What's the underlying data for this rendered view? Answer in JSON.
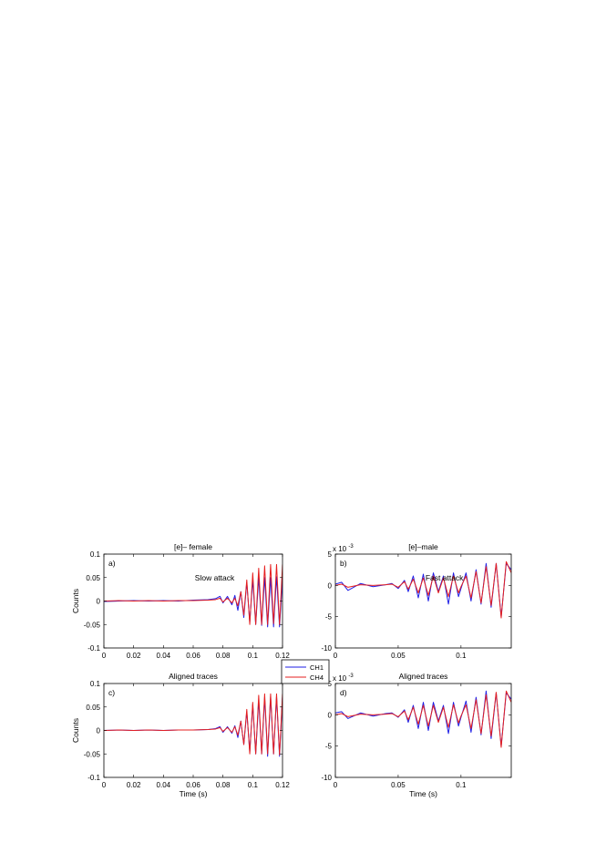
{
  "colors": {
    "ch1": "#1f1fe6",
    "ch4": "#e61f1f"
  },
  "legend": {
    "placement": "center",
    "items": [
      "CH1",
      "CH4"
    ]
  },
  "chart_data": [
    {
      "id": "a",
      "type": "line",
      "title": "[e]– female",
      "panel_label": "a)",
      "annotation": "Slow attack",
      "xlabel": "",
      "ylabel": "Counts",
      "xlim": [
        0,
        0.12
      ],
      "ylim": [
        -0.1,
        0.1
      ],
      "xticks": [
        0,
        0.02,
        0.04,
        0.06,
        0.08,
        0.1,
        0.12
      ],
      "xtick_labels": [
        "0",
        "0.02",
        "0.04",
        "0.06",
        "0.08",
        "0.1",
        "0.12"
      ],
      "yticks": [
        -0.1,
        -0.05,
        0,
        0.05,
        0.1
      ],
      "ytick_labels": [
        "-0.1",
        "-0.05",
        "0",
        "0.05",
        "0.1"
      ],
      "exponent_label": "",
      "series": [
        {
          "name": "CH1",
          "color": "#1f1fe6",
          "x": [
            0,
            0.01,
            0.02,
            0.03,
            0.04,
            0.05,
            0.06,
            0.07,
            0.075,
            0.078,
            0.08,
            0.083,
            0.086,
            0.088,
            0.09,
            0.092,
            0.094,
            0.096,
            0.098,
            0.1,
            0.102,
            0.104,
            0.106,
            0.108,
            0.11,
            0.112,
            0.114,
            0.116,
            0.118,
            0.12
          ],
          "y": [
            -0.001,
            0.0,
            0.001,
            0.0,
            0.001,
            0.0,
            0.002,
            0.003,
            0.005,
            0.01,
            -0.004,
            0.01,
            -0.008,
            0.012,
            -0.02,
            0.02,
            -0.035,
            0.04,
            -0.045,
            0.045,
            -0.05,
            0.05,
            -0.052,
            0.05,
            -0.055,
            0.05,
            -0.055,
            0.052,
            -0.055,
            0.05
          ]
        },
        {
          "name": "CH4",
          "color": "#e61f1f",
          "x": [
            0,
            0.01,
            0.02,
            0.03,
            0.04,
            0.05,
            0.06,
            0.07,
            0.075,
            0.078,
            0.08,
            0.083,
            0.086,
            0.088,
            0.09,
            0.092,
            0.094,
            0.096,
            0.098,
            0.1,
            0.102,
            0.104,
            0.106,
            0.108,
            0.11,
            0.112,
            0.114,
            0.116,
            0.118,
            0.12
          ],
          "y": [
            0.0,
            0.001,
            0.0,
            0.001,
            0.0,
            0.001,
            0.001,
            0.002,
            0.003,
            0.006,
            -0.002,
            0.006,
            -0.004,
            0.006,
            -0.01,
            0.02,
            -0.03,
            0.045,
            -0.05,
            0.06,
            -0.05,
            0.07,
            -0.05,
            0.075,
            -0.05,
            0.078,
            -0.048,
            0.078,
            -0.05,
            0.078
          ]
        }
      ]
    },
    {
      "id": "b",
      "type": "line",
      "title": "[e]–male",
      "panel_label": "b)",
      "annotation": "Fast attack",
      "xlabel": "",
      "ylabel": "",
      "xlim": [
        0,
        0.14
      ],
      "ylim": [
        -10,
        5
      ],
      "xticks": [
        0,
        0.05,
        0.1
      ],
      "xtick_labels": [
        "0",
        "0.05",
        "0.1"
      ],
      "yticks": [
        -10,
        -5,
        0,
        5
      ],
      "ytick_labels": [
        "-10",
        "-5",
        "0",
        "5"
      ],
      "exponent_label": "x 10",
      "exponent_power": "-3",
      "series": [
        {
          "name": "CH1",
          "color": "#1f1fe6",
          "x": [
            0,
            0.005,
            0.01,
            0.02,
            0.03,
            0.04,
            0.045,
            0.05,
            0.055,
            0.058,
            0.062,
            0.066,
            0.07,
            0.074,
            0.078,
            0.082,
            0.086,
            0.09,
            0.094,
            0.098,
            0.1,
            0.104,
            0.108,
            0.112,
            0.116,
            0.12,
            0.124,
            0.128,
            0.132,
            0.136,
            0.14
          ],
          "y": [
            0.2,
            0.5,
            -0.8,
            0.3,
            -0.2,
            0.1,
            0.3,
            -0.5,
            0.8,
            -1.0,
            1.5,
            -2.0,
            1.8,
            -2.5,
            2.0,
            -1.0,
            1.5,
            -3.0,
            2.0,
            -1.8,
            -0.5,
            2.0,
            -2.5,
            2.5,
            -3.0,
            3.5,
            -3.5,
            3.5,
            -5.0,
            3.5,
            2.5
          ]
        },
        {
          "name": "CH4",
          "color": "#e61f1f",
          "x": [
            0,
            0.005,
            0.01,
            0.02,
            0.03,
            0.04,
            0.045,
            0.05,
            0.055,
            0.058,
            0.062,
            0.066,
            0.07,
            0.074,
            0.078,
            0.082,
            0.086,
            0.09,
            0.094,
            0.098,
            0.1,
            0.104,
            0.108,
            0.112,
            0.116,
            0.12,
            0.124,
            0.128,
            0.132,
            0.136,
            0.14
          ],
          "y": [
            0.0,
            0.2,
            -0.3,
            0.1,
            0.0,
            0.1,
            0.2,
            -0.3,
            0.6,
            -0.6,
            1.0,
            -1.2,
            1.2,
            -1.6,
            1.5,
            -1.2,
            1.2,
            -1.8,
            1.5,
            -1.2,
            -0.2,
            1.5,
            -2.0,
            2.2,
            -2.8,
            3.0,
            -3.2,
            3.5,
            -5.2,
            3.8,
            2.0
          ]
        }
      ]
    },
    {
      "id": "c",
      "type": "line",
      "title": "Aligned traces",
      "panel_label": "c)",
      "annotation": "",
      "xlabel": "Time (s)",
      "ylabel": "Counts",
      "xlim": [
        0,
        0.12
      ],
      "ylim": [
        -0.1,
        0.1
      ],
      "xticks": [
        0,
        0.02,
        0.04,
        0.06,
        0.08,
        0.1,
        0.12
      ],
      "xtick_labels": [
        "0",
        "0.02",
        "0.04",
        "0.06",
        "0.08",
        "0.1",
        "0.12"
      ],
      "yticks": [
        -0.1,
        -0.05,
        0,
        0.05,
        0.1
      ],
      "ytick_labels": [
        "-0.1",
        "-0.05",
        "0",
        "0.05",
        "0.1"
      ],
      "exponent_label": "",
      "series": [
        {
          "name": "CH1",
          "color": "#1f1fe6",
          "x": [
            0,
            0.01,
            0.02,
            0.03,
            0.04,
            0.05,
            0.06,
            0.07,
            0.075,
            0.078,
            0.08,
            0.083,
            0.086,
            0.088,
            0.09,
            0.092,
            0.094,
            0.096,
            0.098,
            0.1,
            0.102,
            0.104,
            0.106,
            0.108,
            0.11,
            0.112,
            0.114,
            0.116,
            0.118,
            0.12
          ],
          "y": [
            0.0,
            0.001,
            0.0,
            0.001,
            0.0,
            0.001,
            0.001,
            0.002,
            0.004,
            0.008,
            -0.004,
            0.008,
            -0.006,
            0.01,
            -0.015,
            0.02,
            -0.03,
            0.04,
            -0.045,
            0.055,
            -0.05,
            0.065,
            -0.05,
            0.07,
            -0.055,
            0.072,
            -0.05,
            0.072,
            -0.055,
            0.072
          ]
        },
        {
          "name": "CH4",
          "color": "#e61f1f",
          "x": [
            0,
            0.01,
            0.02,
            0.03,
            0.04,
            0.05,
            0.06,
            0.07,
            0.075,
            0.078,
            0.08,
            0.083,
            0.086,
            0.088,
            0.09,
            0.092,
            0.094,
            0.096,
            0.098,
            0.1,
            0.102,
            0.104,
            0.106,
            0.108,
            0.11,
            0.112,
            0.114,
            0.116,
            0.118,
            0.12
          ],
          "y": [
            0.0,
            0.001,
            0.0,
            0.001,
            0.0,
            0.001,
            0.001,
            0.002,
            0.003,
            0.006,
            -0.002,
            0.006,
            -0.004,
            0.008,
            -0.01,
            0.02,
            -0.03,
            0.045,
            -0.05,
            0.06,
            -0.05,
            0.075,
            -0.05,
            0.078,
            -0.05,
            0.078,
            -0.05,
            0.078,
            -0.052,
            0.078
          ]
        }
      ]
    },
    {
      "id": "d",
      "type": "line",
      "title": "Aligned traces",
      "panel_label": "d)",
      "annotation": "",
      "xlabel": "Time (s)",
      "ylabel": "",
      "xlim": [
        0,
        0.14
      ],
      "ylim": [
        -10,
        5
      ],
      "xticks": [
        0,
        0.05,
        0.1
      ],
      "xtick_labels": [
        "0",
        "0.05",
        "0.1"
      ],
      "yticks": [
        -10,
        -5,
        0,
        5
      ],
      "ytick_labels": [
        "-10",
        "-5",
        "0",
        "5"
      ],
      "exponent_label": "x 10",
      "exponent_power": "-3",
      "series": [
        {
          "name": "CH1",
          "color": "#1f1fe6",
          "x": [
            0,
            0.005,
            0.01,
            0.02,
            0.03,
            0.04,
            0.045,
            0.05,
            0.055,
            0.058,
            0.062,
            0.066,
            0.07,
            0.074,
            0.078,
            0.082,
            0.086,
            0.09,
            0.094,
            0.098,
            0.1,
            0.104,
            0.108,
            0.112,
            0.116,
            0.12,
            0.124,
            0.128,
            0.132,
            0.136,
            0.14
          ],
          "y": [
            0.3,
            0.5,
            -0.6,
            0.3,
            -0.2,
            0.2,
            0.3,
            -0.4,
            0.8,
            -1.2,
            1.5,
            -2.2,
            2.0,
            -2.5,
            2.0,
            -1.0,
            1.5,
            -3.0,
            2.0,
            -1.8,
            -0.4,
            2.2,
            -2.8,
            2.8,
            -3.2,
            3.8,
            -3.8,
            3.5,
            -5.0,
            3.5,
            2.5
          ]
        },
        {
          "name": "CH4",
          "color": "#e61f1f",
          "x": [
            0,
            0.005,
            0.01,
            0.02,
            0.03,
            0.04,
            0.045,
            0.05,
            0.055,
            0.058,
            0.062,
            0.066,
            0.07,
            0.074,
            0.078,
            0.082,
            0.086,
            0.09,
            0.094,
            0.098,
            0.1,
            0.104,
            0.108,
            0.112,
            0.116,
            0.12,
            0.124,
            0.128,
            0.132,
            0.136,
            0.14
          ],
          "y": [
            0.0,
            0.2,
            -0.3,
            0.1,
            0.0,
            0.1,
            0.2,
            -0.3,
            0.6,
            -0.8,
            1.2,
            -1.5,
            1.5,
            -1.8,
            1.5,
            -1.2,
            1.2,
            -2.0,
            1.6,
            -1.3,
            -0.2,
            1.6,
            -2.2,
            2.4,
            -3.0,
            3.2,
            -3.4,
            3.6,
            -5.2,
            3.8,
            2.0
          ]
        }
      ]
    }
  ]
}
